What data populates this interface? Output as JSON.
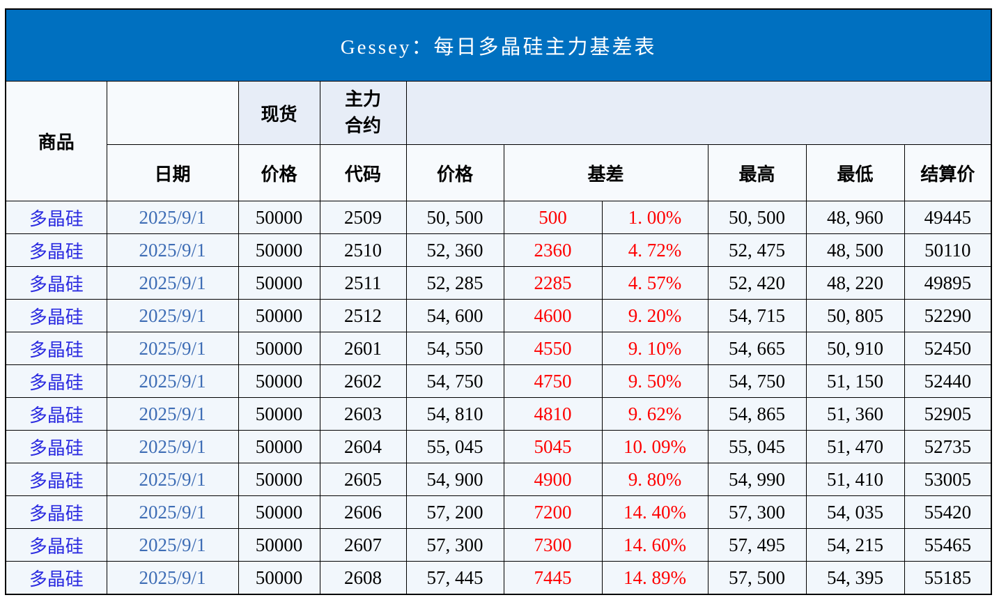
{
  "title": "Gessey：每日多晶硅主力基差表",
  "colors": {
    "title_bg": "#0070C0",
    "title_text": "#FFFFFF",
    "header_light_bg": "#E7EDF7",
    "row_bg": "#F2F7FC",
    "product_text": "#2B2BE0",
    "date_text": "#3E6DB5",
    "basis_text": "#FE0000",
    "border": "#000000"
  },
  "header": {
    "product": "商品",
    "spot": "现货",
    "main_contract": "主力\n合约",
    "date": "日期",
    "spot_price": "价格",
    "code": "代码",
    "main_price": "价格",
    "basis": "基差",
    "high": "最高",
    "low": "最低",
    "settle": "结算价"
  },
  "rows": [
    {
      "product": "多晶硅",
      "date": "2025/9/1",
      "spot_price": "50000",
      "code": "2509",
      "price": "50, 500",
      "basis": "500",
      "basis_pct": "1. 00%",
      "high": "50, 500",
      "low": "48, 960",
      "settle": "49445"
    },
    {
      "product": "多晶硅",
      "date": "2025/9/1",
      "spot_price": "50000",
      "code": "2510",
      "price": "52, 360",
      "basis": "2360",
      "basis_pct": "4. 72%",
      "high": "52, 475",
      "low": "48, 500",
      "settle": "50110"
    },
    {
      "product": "多晶硅",
      "date": "2025/9/1",
      "spot_price": "50000",
      "code": "2511",
      "price": "52, 285",
      "basis": "2285",
      "basis_pct": "4. 57%",
      "high": "52, 420",
      "low": "48, 220",
      "settle": "49895"
    },
    {
      "product": "多晶硅",
      "date": "2025/9/1",
      "spot_price": "50000",
      "code": "2512",
      "price": "54, 600",
      "basis": "4600",
      "basis_pct": "9. 20%",
      "high": "54, 715",
      "low": "50, 805",
      "settle": "52290"
    },
    {
      "product": "多晶硅",
      "date": "2025/9/1",
      "spot_price": "50000",
      "code": "2601",
      "price": "54, 550",
      "basis": "4550",
      "basis_pct": "9. 10%",
      "high": "54, 665",
      "low": "50, 910",
      "settle": "52450"
    },
    {
      "product": "多晶硅",
      "date": "2025/9/1",
      "spot_price": "50000",
      "code": "2602",
      "price": "54, 750",
      "basis": "4750",
      "basis_pct": "9. 50%",
      "high": "54, 750",
      "low": "51, 150",
      "settle": "52440"
    },
    {
      "product": "多晶硅",
      "date": "2025/9/1",
      "spot_price": "50000",
      "code": "2603",
      "price": "54, 810",
      "basis": "4810",
      "basis_pct": "9. 62%",
      "high": "54, 865",
      "low": "51, 360",
      "settle": "52905"
    },
    {
      "product": "多晶硅",
      "date": "2025/9/1",
      "spot_price": "50000",
      "code": "2604",
      "price": "55, 045",
      "basis": "5045",
      "basis_pct": "10. 09%",
      "high": "55, 045",
      "low": "51, 470",
      "settle": "52735"
    },
    {
      "product": "多晶硅",
      "date": "2025/9/1",
      "spot_price": "50000",
      "code": "2605",
      "price": "54, 900",
      "basis": "4900",
      "basis_pct": "9. 80%",
      "high": "54, 990",
      "low": "51, 410",
      "settle": "53005"
    },
    {
      "product": "多晶硅",
      "date": "2025/9/1",
      "spot_price": "50000",
      "code": "2606",
      "price": "57, 200",
      "basis": "7200",
      "basis_pct": "14. 40%",
      "high": "57, 300",
      "low": "54, 035",
      "settle": "55420"
    },
    {
      "product": "多晶硅",
      "date": "2025/9/1",
      "spot_price": "50000",
      "code": "2607",
      "price": "57, 300",
      "basis": "7300",
      "basis_pct": "14. 60%",
      "high": "57, 495",
      "low": "54, 215",
      "settle": "55465"
    },
    {
      "product": "多晶硅",
      "date": "2025/9/1",
      "spot_price": "50000",
      "code": "2608",
      "price": "57, 445",
      "basis": "7445",
      "basis_pct": "14. 89%",
      "high": "57, 500",
      "low": "54, 395",
      "settle": "55185"
    }
  ],
  "chart_data": {
    "type": "table",
    "title": "Gessey：每日多晶硅主力基差表",
    "columns": [
      "商品",
      "日期",
      "现货价格",
      "主力合约代码",
      "主力合约价格",
      "基差",
      "基差%",
      "最高",
      "最低",
      "结算价"
    ],
    "rows": [
      [
        "多晶硅",
        "2025/9/1",
        50000,
        "2509",
        50500,
        500,
        "1.00%",
        50500,
        48960,
        49445
      ],
      [
        "多晶硅",
        "2025/9/1",
        50000,
        "2510",
        52360,
        2360,
        "4.72%",
        52475,
        48500,
        50110
      ],
      [
        "多晶硅",
        "2025/9/1",
        50000,
        "2511",
        52285,
        2285,
        "4.57%",
        52420,
        48220,
        49895
      ],
      [
        "多晶硅",
        "2025/9/1",
        50000,
        "2512",
        54600,
        4600,
        "9.20%",
        54715,
        50805,
        52290
      ],
      [
        "多晶硅",
        "2025/9/1",
        50000,
        "2601",
        54550,
        4550,
        "9.10%",
        54665,
        50910,
        52450
      ],
      [
        "多晶硅",
        "2025/9/1",
        50000,
        "2602",
        54750,
        4750,
        "9.50%",
        54750,
        51150,
        52440
      ],
      [
        "多晶硅",
        "2025/9/1",
        50000,
        "2603",
        54810,
        4810,
        "9.62%",
        54865,
        51360,
        52905
      ],
      [
        "多晶硅",
        "2025/9/1",
        50000,
        "2604",
        55045,
        5045,
        "10.09%",
        55045,
        51470,
        52735
      ],
      [
        "多晶硅",
        "2025/9/1",
        50000,
        "2605",
        54900,
        4900,
        "9.80%",
        54990,
        51410,
        53005
      ],
      [
        "多晶硅",
        "2025/9/1",
        50000,
        "2606",
        57200,
        7200,
        "14.40%",
        57300,
        54035,
        55420
      ],
      [
        "多晶硅",
        "2025/9/1",
        50000,
        "2607",
        57300,
        7300,
        "14.60%",
        57495,
        54215,
        55465
      ],
      [
        "多晶硅",
        "2025/9/1",
        50000,
        "2608",
        57445,
        7445,
        "14.89%",
        57500,
        54395,
        55185
      ]
    ]
  }
}
